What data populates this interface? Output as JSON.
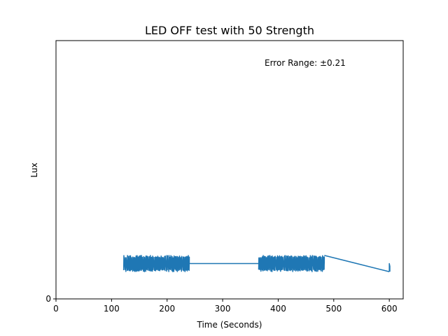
{
  "chart_data": {
    "type": "line",
    "title": "LED OFF test with 50 Strength",
    "xlabel": "Time (Seconds)",
    "ylabel": "Lux",
    "annotation": "Error Range: ±0.21",
    "xlim": [
      0,
      625
    ],
    "ylim": [
      0,
      0.95
    ],
    "x_ticks": [
      0,
      100,
      200,
      300,
      400,
      500,
      600
    ],
    "y_ticks": [
      0
    ],
    "grid": false,
    "series": [
      {
        "color": "#1f77b4",
        "segments": [
          {
            "kind": "oscillation",
            "x_start": 122,
            "x_end": 240,
            "low": 0.1,
            "high": 0.16,
            "count": 60,
            "seed": 7
          },
          {
            "kind": "line",
            "points": [
              [
                240,
                0.13
              ],
              [
                365,
                0.13
              ]
            ]
          },
          {
            "kind": "oscillation",
            "x_start": 365,
            "x_end": 483,
            "low": 0.1,
            "high": 0.16,
            "count": 60,
            "seed": 19
          },
          {
            "kind": "line",
            "points": [
              [
                483,
                0.16
              ],
              [
                600,
                0.1
              ]
            ]
          },
          {
            "kind": "line",
            "points": [
              [
                600,
                0.1
              ],
              [
                600,
                0.13
              ],
              [
                601,
                0.12
              ],
              [
                601,
                0.1
              ]
            ]
          }
        ]
      }
    ]
  }
}
